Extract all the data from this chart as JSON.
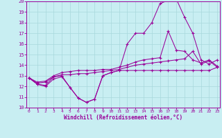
{
  "xlabel": "Windchill (Refroidissement éolien,°C)",
  "xlim_min": 0,
  "xlim_max": 23,
  "ylim_min": 10,
  "ylim_max": 20,
  "yticks": [
    10,
    11,
    12,
    13,
    14,
    15,
    16,
    17,
    18,
    19,
    20
  ],
  "xticks": [
    0,
    1,
    2,
    3,
    4,
    5,
    6,
    7,
    8,
    9,
    10,
    11,
    12,
    13,
    14,
    15,
    16,
    17,
    18,
    19,
    20,
    21,
    22,
    23
  ],
  "bg_color": "#c8eef2",
  "line_color": "#990099",
  "grid_color": "#a8d8dc",
  "line1_y": [
    12.8,
    12.2,
    12.1,
    12.9,
    13.0,
    11.9,
    10.9,
    10.5,
    10.8,
    13.0,
    13.3,
    13.5,
    13.5,
    13.5,
    13.5,
    13.5,
    13.5,
    13.5,
    13.5,
    13.5,
    13.5,
    13.5,
    13.5,
    13.8
  ],
  "line2_y": [
    12.8,
    12.3,
    12.4,
    12.9,
    13.1,
    13.1,
    13.2,
    13.2,
    13.3,
    13.4,
    13.5,
    13.6,
    13.8,
    14.0,
    14.1,
    14.2,
    14.3,
    14.4,
    14.5,
    14.6,
    15.3,
    14.1,
    14.4,
    13.8
  ],
  "line3_y": [
    12.8,
    12.2,
    12.0,
    12.7,
    12.9,
    11.9,
    10.9,
    10.5,
    10.8,
    13.0,
    13.3,
    13.5,
    16.0,
    17.0,
    17.0,
    18.0,
    19.8,
    20.1,
    20.2,
    18.5,
    17.0,
    14.5,
    14.1,
    14.5
  ],
  "line4_y": [
    12.8,
    12.4,
    12.5,
    13.0,
    13.3,
    13.4,
    13.5,
    13.5,
    13.5,
    13.6,
    13.6,
    13.8,
    14.0,
    14.3,
    14.5,
    14.6,
    14.7,
    17.2,
    15.4,
    15.3,
    14.5,
    14.2,
    14.5,
    13.9
  ]
}
